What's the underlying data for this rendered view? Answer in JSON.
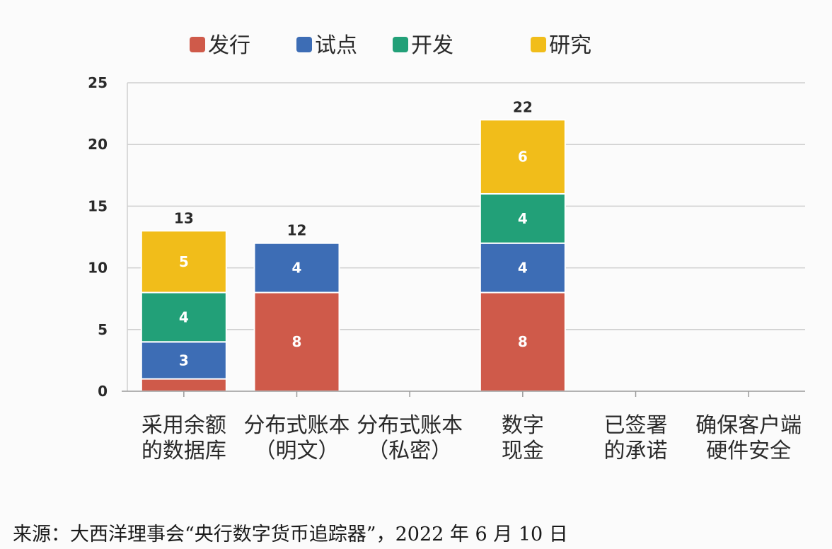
{
  "chart_data": {
    "type": "bar",
    "stacked": true,
    "categories": [
      [
        "采用余额",
        "的数据库"
      ],
      [
        "分布式账本",
        "（明文）"
      ],
      [
        "分布式账本",
        "（私密）"
      ],
      [
        "数字",
        "现金"
      ],
      [
        "已签署",
        "的承诺"
      ],
      [
        "确保客户端",
        "硬件安全"
      ]
    ],
    "series": [
      {
        "name": "发行",
        "color": "#cf5a4a",
        "values": [
          1,
          8,
          0,
          8,
          0,
          0
        ]
      },
      {
        "name": "试点",
        "color": "#3d6db5",
        "values": [
          3,
          4,
          0,
          4,
          0,
          0
        ]
      },
      {
        "name": "开发",
        "color": "#22a078",
        "values": [
          4,
          0,
          0,
          4,
          0,
          0
        ]
      },
      {
        "name": "研究",
        "color": "#f1bd1a",
        "values": [
          5,
          0,
          0,
          6,
          0,
          0
        ]
      }
    ],
    "segment_labels": [
      [
        null,
        "3",
        "4",
        "5"
      ],
      [
        "8",
        "4",
        null,
        null
      ],
      [
        null,
        null,
        null,
        null
      ],
      [
        "8",
        "4",
        "4",
        "6"
      ],
      [
        null,
        null,
        null,
        null
      ],
      [
        null,
        null,
        null,
        null
      ]
    ],
    "totals": [
      "13",
      "12",
      null,
      "22",
      null,
      null
    ],
    "ylim": [
      0,
      25
    ],
    "yticks": [
      0,
      5,
      10,
      15,
      20,
      25
    ],
    "grid": true,
    "legend_position": "top"
  },
  "source_note": "来源：大西洋理事会“央行数字货币追踪器”，2022 年 6 月 10 日"
}
